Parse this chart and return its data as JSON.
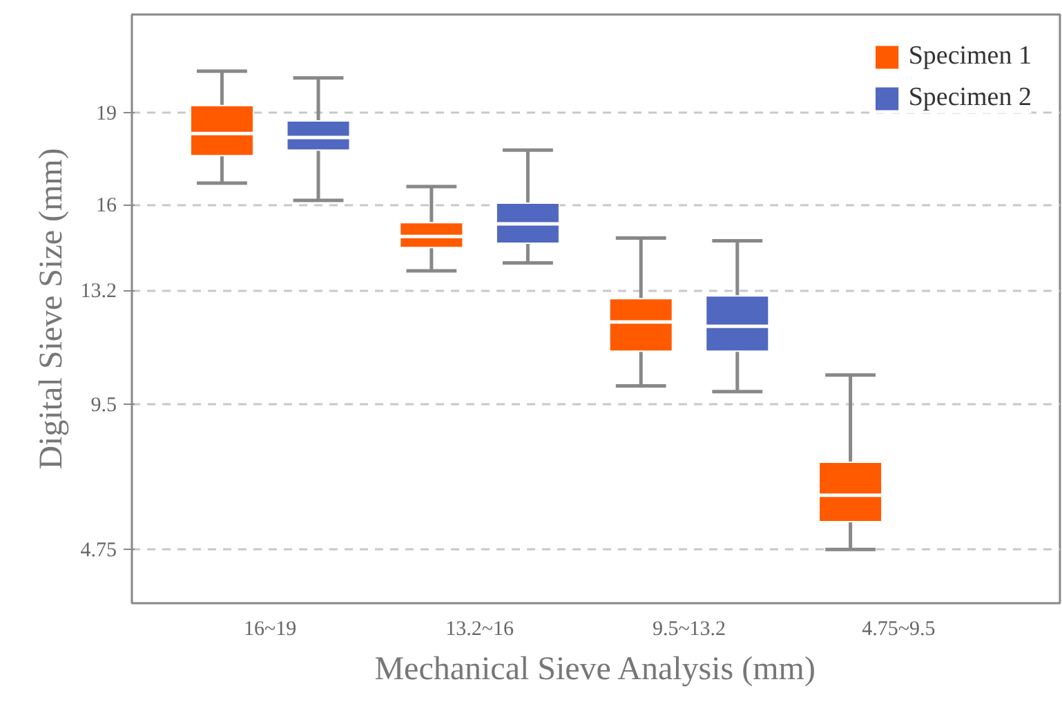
{
  "chart_data": {
    "type": "box",
    "xlabel": "Mechanical Sieve Analysis (mm)",
    "ylabel": "Digital Sieve Size (mm)",
    "categories": [
      "16~19",
      "13.2~16",
      "9.5~13.2",
      "4.75~9.5"
    ],
    "ylim": [
      3.0,
      22.2
    ],
    "yticks": [
      4.75,
      9.5,
      13.2,
      16,
      19
    ],
    "grid": "y",
    "legend": "top right",
    "series": [
      {
        "name": "Specimen 1",
        "color": "#ff5a00",
        "boxes": [
          {
            "low": 16.7,
            "q1": 17.6,
            "median": 18.32,
            "q3": 19.23,
            "high": 20.35
          },
          {
            "low": 13.84,
            "q1": 14.6,
            "median": 14.96,
            "q3": 15.41,
            "high": 16.59
          },
          {
            "low": 10.09,
            "q1": 11.22,
            "median": 12.17,
            "q3": 12.93,
            "high": 14.91
          },
          {
            "low": 4.75,
            "q1": 5.66,
            "median": 6.52,
            "q3": 7.6,
            "high": 10.44
          }
        ]
      },
      {
        "name": "Specimen 2",
        "color": "#5068c0",
        "boxes": [
          {
            "low": 16.14,
            "q1": 17.78,
            "median": 18.19,
            "q3": 18.73,
            "high": 20.13
          },
          {
            "low": 14.1,
            "q1": 14.74,
            "median": 15.37,
            "q3": 16.05,
            "high": 17.78
          },
          {
            "low": 9.9,
            "q1": 11.22,
            "median": 12.03,
            "q3": 13.02,
            "high": 14.82
          },
          null
        ]
      }
    ]
  }
}
